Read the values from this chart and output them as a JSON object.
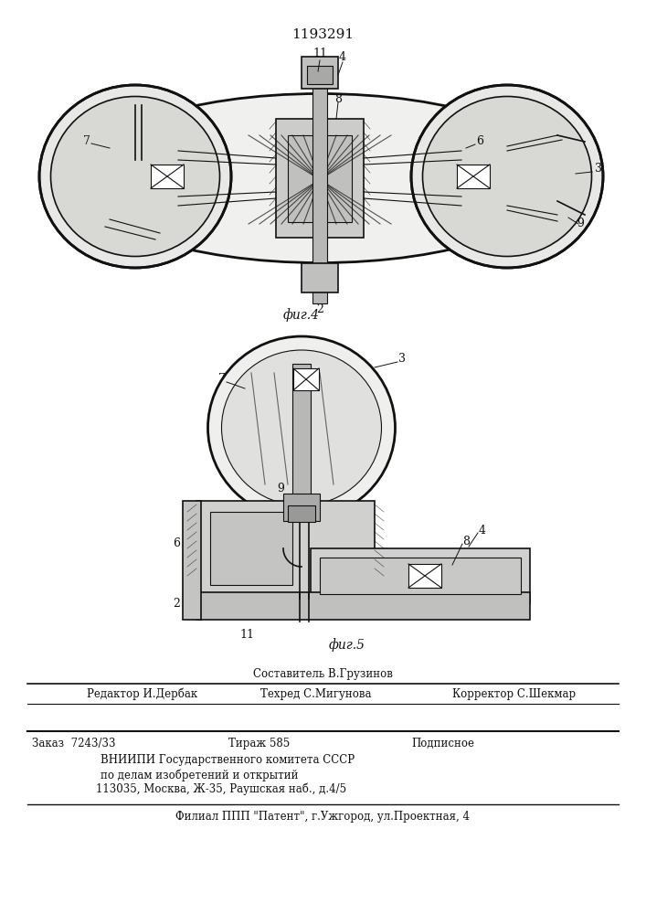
{
  "patent_number": "1193291",
  "fig4_label": "фиг.4",
  "fig5_label": "фиг.5",
  "bg_color": "#ffffff",
  "line_color": "#111111",
  "hatch_color": "#555555",
  "gray_light": "#d8d8d8",
  "gray_med": "#bbbbbb",
  "gray_dark": "#888888",
  "footer_composer": "Составитель В.Грузинов",
  "footer_editor": "Редактор И.Дербак",
  "footer_techred": "Техред С.Мигунова",
  "footer_korrektor": "Корректор С.Шекмар",
  "footer_order": "Заказ  7243/33",
  "footer_tirazh": "Тираж 585",
  "footer_podpisnoe": "Подписное",
  "footer_vnipi": "ВНИИПИ Государственного комитета СССР",
  "footer_vnipi2": "по делам изобретений и открытий",
  "footer_vnipi3": "113035, Москва, Ж-35, Раушская наб., д.4/5",
  "footer_filial": "Филиал ППП \"Патент\", г.Ужгород, ул.Проектная, 4"
}
